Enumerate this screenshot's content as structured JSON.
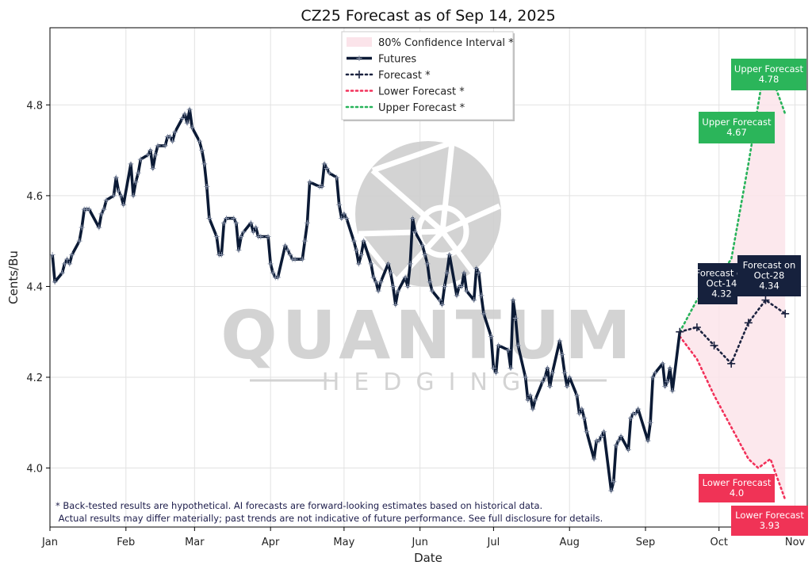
{
  "chart_data": {
    "type": "line",
    "title": "CZ25 Forecast as of Sep 14, 2025",
    "xlabel": "Date",
    "ylabel": "Cents/Bu",
    "ylim": [
      3.87,
      4.97
    ],
    "xlim": [
      "2025-01-01",
      "2025-11-06"
    ],
    "x_ticks": [
      {
        "date": "2025-01-01",
        "label": "Jan"
      },
      {
        "date": "2025-02-01",
        "label": "Feb"
      },
      {
        "date": "2025-03-01",
        "label": "Mar"
      },
      {
        "date": "2025-04-01",
        "label": "Apr"
      },
      {
        "date": "2025-05-01",
        "label": "May"
      },
      {
        "date": "2025-06-01",
        "label": "Jun"
      },
      {
        "date": "2025-07-01",
        "label": "Jul"
      },
      {
        "date": "2025-08-01",
        "label": "Aug"
      },
      {
        "date": "2025-09-01",
        "label": "Sep"
      },
      {
        "date": "2025-10-01",
        "label": "Oct"
      },
      {
        "date": "2025-11-01",
        "label": "Nov"
      }
    ],
    "y_ticks": [
      {
        "value": 4.0,
        "label": "4.0"
      },
      {
        "value": 4.2,
        "label": "4.2"
      },
      {
        "value": 4.4,
        "label": "4.4"
      },
      {
        "value": 4.6,
        "label": "4.6"
      },
      {
        "value": 4.8,
        "label": "4.8"
      }
    ],
    "grid": true,
    "legend": {
      "placement": "top-center",
      "entries": [
        {
          "label": "80% Confidence Interval *",
          "style": "band"
        },
        {
          "label": "Futures",
          "style": "solid"
        },
        {
          "label": "Forecast *",
          "style": "dotted-marker"
        },
        {
          "label": "Lower Forecast *",
          "style": "dotted"
        },
        {
          "label": "Upper Forecast *",
          "style": "dotted"
        }
      ]
    },
    "colors": {
      "futures": "#0b1a35",
      "forecast": "#1c2340",
      "lower": "#f2315a",
      "upper": "#27b35a",
      "band": "#fbe4ea",
      "callout_navy": "#16213d",
      "callout_green": "#2bb55a",
      "callout_red": "#f03356"
    },
    "series": [
      {
        "name": "Futures",
        "points": [
          [
            "2025-01-02",
            4.47
          ],
          [
            "2025-01-03",
            4.41
          ],
          [
            "2025-01-06",
            4.43
          ],
          [
            "2025-01-07",
            4.45
          ],
          [
            "2025-01-08",
            4.46
          ],
          [
            "2025-01-09",
            4.45
          ],
          [
            "2025-01-10",
            4.47
          ],
          [
            "2025-01-13",
            4.5
          ],
          [
            "2025-01-14",
            4.53
          ],
          [
            "2025-01-15",
            4.57
          ],
          [
            "2025-01-16",
            4.57
          ],
          [
            "2025-01-17",
            4.57
          ],
          [
            "2025-01-21",
            4.53
          ],
          [
            "2025-01-22",
            4.56
          ],
          [
            "2025-01-23",
            4.57
          ],
          [
            "2025-01-24",
            4.59
          ],
          [
            "2025-01-27",
            4.6
          ],
          [
            "2025-01-28",
            4.64
          ],
          [
            "2025-01-29",
            4.61
          ],
          [
            "2025-01-30",
            4.6
          ],
          [
            "2025-01-31",
            4.58
          ],
          [
            "2025-02-03",
            4.67
          ],
          [
            "2025-02-04",
            4.6
          ],
          [
            "2025-02-05",
            4.63
          ],
          [
            "2025-02-06",
            4.65
          ],
          [
            "2025-02-07",
            4.68
          ],
          [
            "2025-02-10",
            4.69
          ],
          [
            "2025-02-11",
            4.7
          ],
          [
            "2025-02-12",
            4.66
          ],
          [
            "2025-02-13",
            4.69
          ],
          [
            "2025-02-14",
            4.71
          ],
          [
            "2025-02-17",
            4.71
          ],
          [
            "2025-02-18",
            4.73
          ],
          [
            "2025-02-19",
            4.73
          ],
          [
            "2025-02-20",
            4.72
          ],
          [
            "2025-02-21",
            4.74
          ],
          [
            "2025-02-24",
            4.77
          ],
          [
            "2025-02-25",
            4.78
          ],
          [
            "2025-02-26",
            4.76
          ],
          [
            "2025-02-27",
            4.79
          ],
          [
            "2025-02-28",
            4.75
          ],
          [
            "2025-03-03",
            4.72
          ],
          [
            "2025-03-04",
            4.7
          ],
          [
            "2025-03-05",
            4.67
          ],
          [
            "2025-03-06",
            4.62
          ],
          [
            "2025-03-07",
            4.55
          ],
          [
            "2025-03-10",
            4.51
          ],
          [
            "2025-03-11",
            4.47
          ],
          [
            "2025-03-12",
            4.47
          ],
          [
            "2025-03-13",
            4.54
          ],
          [
            "2025-03-14",
            4.55
          ],
          [
            "2025-03-17",
            4.55
          ],
          [
            "2025-03-18",
            4.54
          ],
          [
            "2025-03-19",
            4.48
          ],
          [
            "2025-03-20",
            4.51
          ],
          [
            "2025-03-21",
            4.52
          ],
          [
            "2025-03-24",
            4.54
          ],
          [
            "2025-03-25",
            4.52
          ],
          [
            "2025-03-26",
            4.53
          ],
          [
            "2025-03-27",
            4.51
          ],
          [
            "2025-03-28",
            4.51
          ],
          [
            "2025-03-31",
            4.51
          ],
          [
            "2025-04-01",
            4.45
          ],
          [
            "2025-04-02",
            4.43
          ],
          [
            "2025-04-03",
            4.42
          ],
          [
            "2025-04-04",
            4.42
          ],
          [
            "2025-04-07",
            4.49
          ],
          [
            "2025-04-08",
            4.48
          ],
          [
            "2025-04-09",
            4.47
          ],
          [
            "2025-04-10",
            4.46
          ],
          [
            "2025-04-11",
            4.46
          ],
          [
            "2025-04-14",
            4.46
          ],
          [
            "2025-04-15",
            4.5
          ],
          [
            "2025-04-16",
            4.54
          ],
          [
            "2025-04-17",
            4.63
          ],
          [
            "2025-04-21",
            4.62
          ],
          [
            "2025-04-22",
            4.62
          ],
          [
            "2025-04-23",
            4.67
          ],
          [
            "2025-04-24",
            4.66
          ],
          [
            "2025-04-25",
            4.65
          ],
          [
            "2025-04-28",
            4.64
          ],
          [
            "2025-04-29",
            4.58
          ],
          [
            "2025-04-30",
            4.55
          ],
          [
            "2025-05-01",
            4.56
          ],
          [
            "2025-05-02",
            4.55
          ],
          [
            "2025-05-05",
            4.5
          ],
          [
            "2025-05-06",
            4.48
          ],
          [
            "2025-05-07",
            4.45
          ],
          [
            "2025-05-08",
            4.47
          ],
          [
            "2025-05-09",
            4.5
          ],
          [
            "2025-05-12",
            4.45
          ],
          [
            "2025-05-13",
            4.42
          ],
          [
            "2025-05-14",
            4.41
          ],
          [
            "2025-05-15",
            4.39
          ],
          [
            "2025-05-16",
            4.41
          ],
          [
            "2025-05-19",
            4.45
          ],
          [
            "2025-05-20",
            4.43
          ],
          [
            "2025-05-21",
            4.4
          ],
          [
            "2025-05-22",
            4.36
          ],
          [
            "2025-05-23",
            4.39
          ],
          [
            "2025-05-26",
            4.42
          ],
          [
            "2025-05-27",
            4.4
          ],
          [
            "2025-05-28",
            4.45
          ],
          [
            "2025-05-29",
            4.55
          ],
          [
            "2025-05-30",
            4.52
          ],
          [
            "2025-06-02",
            4.49
          ],
          [
            "2025-06-03",
            4.47
          ],
          [
            "2025-06-04",
            4.45
          ],
          [
            "2025-06-05",
            4.41
          ],
          [
            "2025-06-06",
            4.39
          ],
          [
            "2025-06-09",
            4.37
          ],
          [
            "2025-06-10",
            4.36
          ],
          [
            "2025-06-11",
            4.4
          ],
          [
            "2025-06-12",
            4.43
          ],
          [
            "2025-06-13",
            4.47
          ],
          [
            "2025-06-16",
            4.38
          ],
          [
            "2025-06-17",
            4.4
          ],
          [
            "2025-06-18",
            4.4
          ],
          [
            "2025-06-19",
            4.43
          ],
          [
            "2025-06-20",
            4.39
          ],
          [
            "2025-06-23",
            4.37
          ],
          [
            "2025-06-24",
            4.44
          ],
          [
            "2025-06-25",
            4.43
          ],
          [
            "2025-06-26",
            4.38
          ],
          [
            "2025-06-27",
            4.34
          ],
          [
            "2025-06-30",
            4.29
          ],
          [
            "2025-07-01",
            4.22
          ],
          [
            "2025-07-02",
            4.21
          ],
          [
            "2025-07-03",
            4.27
          ],
          [
            "2025-07-07",
            4.26
          ],
          [
            "2025-07-08",
            4.22
          ],
          [
            "2025-07-09",
            4.37
          ],
          [
            "2025-07-10",
            4.33
          ],
          [
            "2025-07-11",
            4.27
          ],
          [
            "2025-07-14",
            4.2
          ],
          [
            "2025-07-15",
            4.15
          ],
          [
            "2025-07-16",
            4.16
          ],
          [
            "2025-07-17",
            4.13
          ],
          [
            "2025-07-18",
            4.15
          ],
          [
            "2025-07-21",
            4.19
          ],
          [
            "2025-07-22",
            4.2
          ],
          [
            "2025-07-23",
            4.22
          ],
          [
            "2025-07-24",
            4.18
          ],
          [
            "2025-07-25",
            4.21
          ],
          [
            "2025-07-28",
            4.28
          ],
          [
            "2025-07-29",
            4.25
          ],
          [
            "2025-07-30",
            4.21
          ],
          [
            "2025-07-31",
            4.18
          ],
          [
            "2025-08-01",
            4.2
          ],
          [
            "2025-08-04",
            4.16
          ],
          [
            "2025-08-05",
            4.12
          ],
          [
            "2025-08-06",
            4.13
          ],
          [
            "2025-08-07",
            4.11
          ],
          [
            "2025-08-08",
            4.08
          ],
          [
            "2025-08-11",
            4.02
          ],
          [
            "2025-08-12",
            4.06
          ],
          [
            "2025-08-13",
            4.06
          ],
          [
            "2025-08-14",
            4.07
          ],
          [
            "2025-08-15",
            4.08
          ],
          [
            "2025-08-18",
            3.95
          ],
          [
            "2025-08-19",
            3.97
          ],
          [
            "2025-08-20",
            4.05
          ],
          [
            "2025-08-21",
            4.06
          ],
          [
            "2025-08-22",
            4.07
          ],
          [
            "2025-08-25",
            4.04
          ],
          [
            "2025-08-26",
            4.11
          ],
          [
            "2025-08-27",
            4.12
          ],
          [
            "2025-08-28",
            4.12
          ],
          [
            "2025-08-29",
            4.13
          ],
          [
            "2025-09-02",
            4.06
          ],
          [
            "2025-09-03",
            4.1
          ],
          [
            "2025-09-04",
            4.2
          ],
          [
            "2025-09-05",
            4.21
          ],
          [
            "2025-09-08",
            4.23
          ],
          [
            "2025-09-09",
            4.18
          ],
          [
            "2025-09-10",
            4.19
          ],
          [
            "2025-09-11",
            4.22
          ],
          [
            "2025-09-12",
            4.17
          ],
          [
            "2025-09-15",
            4.3
          ]
        ]
      },
      {
        "name": "Forecast *",
        "points": [
          [
            "2025-09-15",
            4.3
          ],
          [
            "2025-09-22",
            4.31
          ],
          [
            "2025-09-29",
            4.27
          ],
          [
            "2025-10-06",
            4.23
          ],
          [
            "2025-10-13",
            4.32
          ],
          [
            "2025-10-20",
            4.37
          ],
          [
            "2025-10-28",
            4.34
          ]
        ]
      },
      {
        "name": "Lower Forecast *",
        "points": [
          [
            "2025-09-15",
            4.29
          ],
          [
            "2025-09-22",
            4.24
          ],
          [
            "2025-09-29",
            4.16
          ],
          [
            "2025-10-06",
            4.09
          ],
          [
            "2025-10-13",
            4.02
          ],
          [
            "2025-10-17",
            4.0
          ],
          [
            "2025-10-22",
            4.02
          ],
          [
            "2025-10-28",
            3.93
          ]
        ]
      },
      {
        "name": "Upper Forecast *",
        "points": [
          [
            "2025-09-15",
            4.3
          ],
          [
            "2025-09-22",
            4.37
          ],
          [
            "2025-09-29",
            4.41
          ],
          [
            "2025-10-06",
            4.46
          ],
          [
            "2025-10-13",
            4.67
          ],
          [
            "2025-10-20",
            4.9
          ],
          [
            "2025-10-28",
            4.78
          ]
        ]
      }
    ],
    "callouts": [
      {
        "lines": [
          "Upper Forecast",
          "4.78"
        ],
        "color": "green"
      },
      {
        "lines": [
          "Upper Forecast",
          "4.67"
        ],
        "color": "green"
      },
      {
        "lines": [
          "Forecast on",
          "Oct-14",
          "4.32"
        ],
        "color": "navy"
      },
      {
        "lines": [
          "Forecast on",
          "Oct-28",
          "4.34"
        ],
        "color": "navy"
      },
      {
        "lines": [
          "Lower Forecast",
          "4.0"
        ],
        "color": "red"
      },
      {
        "lines": [
          "Lower Forecast",
          "3.93"
        ],
        "color": "red"
      }
    ],
    "disclaimer": [
      "* Back-tested results are hypothetical. AI forecasts are forward-looking estimates based on historical data.",
      " Actual results may differ materially; past trends are not indicative of future performance. See full disclosure for details."
    ]
  },
  "watermark": {
    "brand": "QUANTUM",
    "tagline": "HEDGING"
  }
}
